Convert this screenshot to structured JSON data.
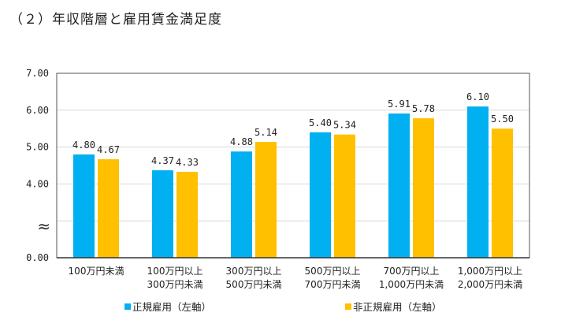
{
  "title": "（２）年収階層と雇用賃金満足度",
  "chart_data": {
    "type": "bar",
    "title": "（２）年収階層と雇用賃金満足度",
    "categories": [
      [
        "100万円未満"
      ],
      [
        "100万円以上",
        "300万円未満"
      ],
      [
        "300万円以上",
        "500万円未満"
      ],
      [
        "500万円以上",
        "700万円未満"
      ],
      [
        "700万円以上",
        "1,000万円未満"
      ],
      [
        "1,000万円以上",
        "2,000万円未満"
      ]
    ],
    "series": [
      {
        "name": "正規雇用（左軸）",
        "color": "#00B0F0",
        "values": [
          4.8,
          4.37,
          4.88,
          5.4,
          5.91,
          6.1
        ],
        "labels": [
          "4.80",
          "4.37",
          "4.88",
          "5.40",
          "5.91",
          "6.10"
        ]
      },
      {
        "name": "非正規雇用（左軸）",
        "color": "#FFC000",
        "values": [
          4.67,
          4.33,
          5.14,
          5.34,
          5.78,
          5.5
        ],
        "labels": [
          "4.67",
          "4.33",
          "5.14",
          "5.34",
          "5.78",
          "5.50"
        ]
      }
    ],
    "yticks": [
      "7.00",
      "6.00",
      "5.00",
      "4.00",
      "0.00"
    ],
    "ytick_values": [
      7,
      6,
      5,
      4,
      0
    ],
    "axis_break": "≈",
    "ylim": [
      0,
      7
    ],
    "grid": true,
    "legend": "bottom",
    "xlabel": "",
    "ylabel": ""
  }
}
